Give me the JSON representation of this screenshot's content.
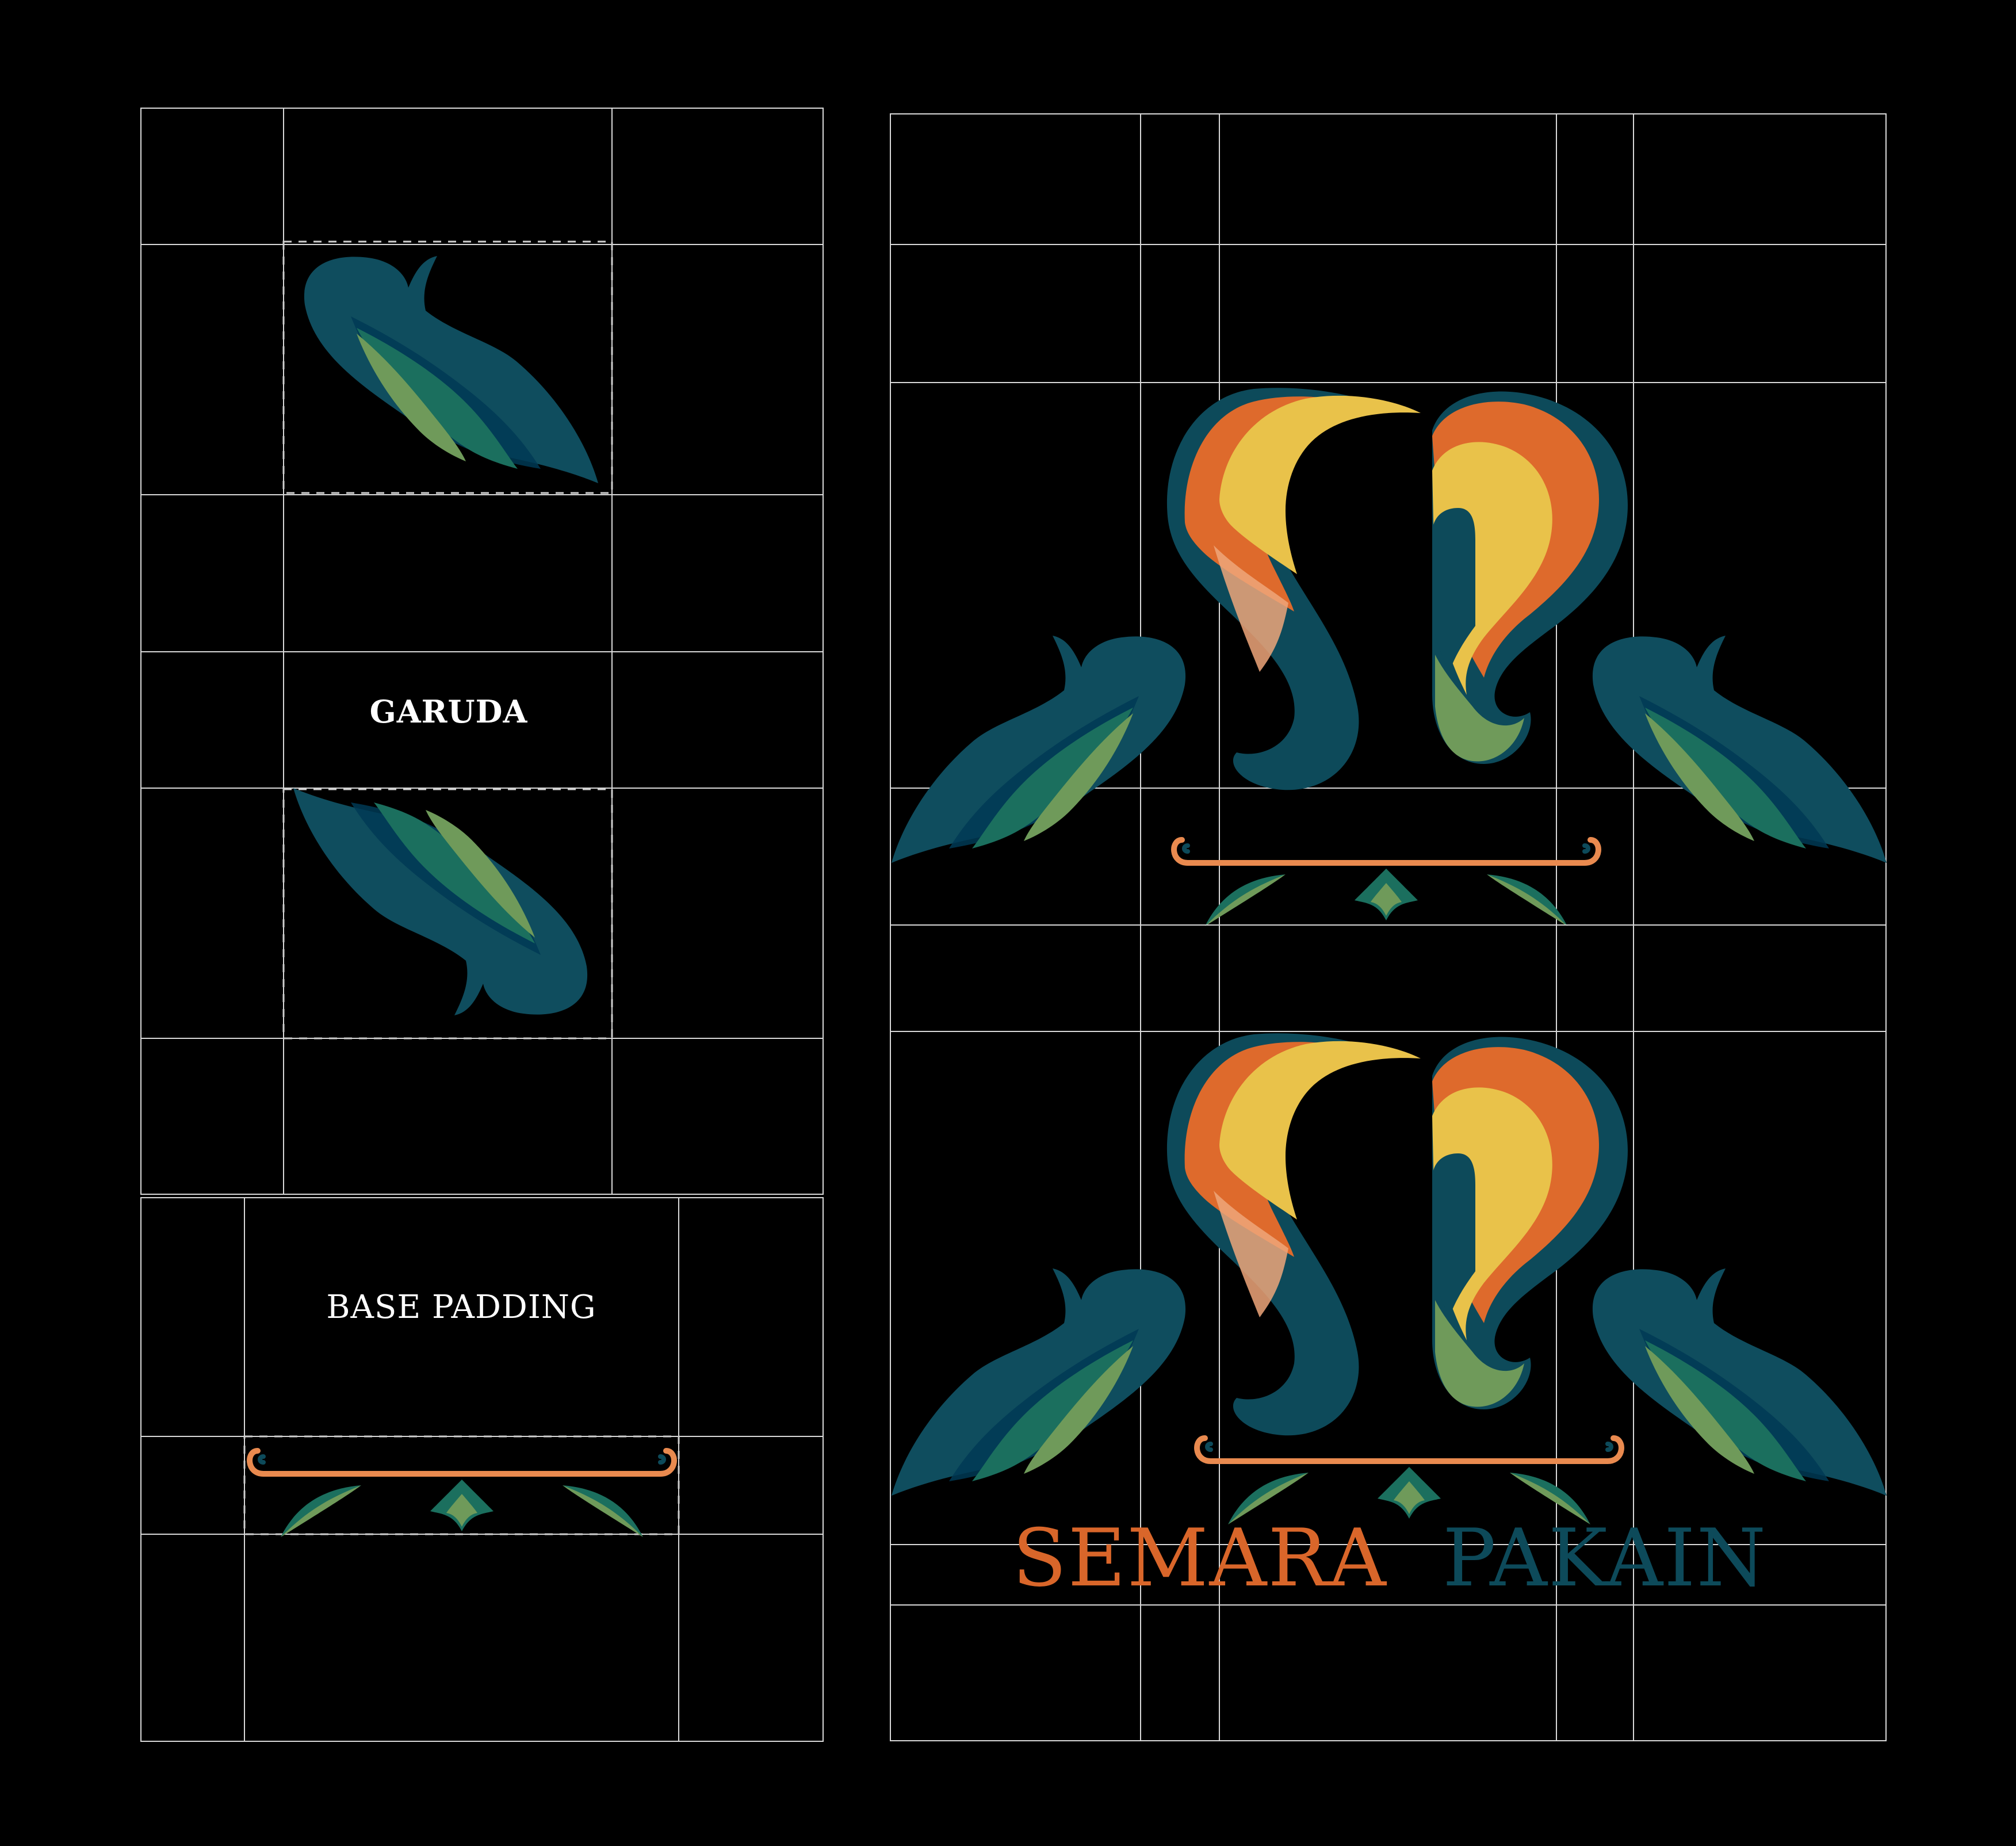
{
  "labels": {
    "garuda": "GARUDA",
    "base_padding": "BASE PADDING"
  },
  "brand": {
    "word_left": "SEMARA",
    "word_right": "PAKAIN"
  },
  "colors": {
    "background": "#000000",
    "grid_line": "#d9d9d9",
    "dashed_box": "#cfcfcf",
    "deep_teal": "#0d4a5a",
    "mid_teal": "#0f3e55",
    "green": "#1b6f5e",
    "leaf_green": "#6f9a5a",
    "orange": "#de6a2c",
    "yellow": "#e9c24a",
    "peach": "#efa67a",
    "brand_orange": "#d9662a",
    "brand_teal": "#0d4a5a",
    "ornament_orange": "#e98a4f"
  }
}
